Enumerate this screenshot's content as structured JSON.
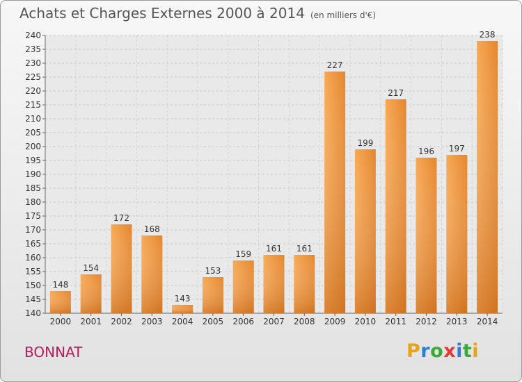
{
  "chart_title": "Achats et Charges Externes 2000 à 2014",
  "chart_subtitle": "(en milliers d'€)",
  "location": "BONNAT",
  "logo": {
    "letters": [
      "P",
      "r",
      "o",
      "x",
      "i",
      "t",
      "i"
    ],
    "colors": [
      "#e8a317",
      "#2b7fd4",
      "#3aa935",
      "#e53935",
      "#2b7fd4",
      "#3aa935",
      "#e8a317"
    ]
  },
  "colors": {
    "bar_light": "#f5a24e",
    "bar_dark": "#d4741c",
    "title": "#555555",
    "location": "#c2185b"
  },
  "chart_data": {
    "type": "bar",
    "title": "Achats et Charges Externes 2000 à 2014",
    "subtitle": "(en milliers d'€)",
    "categories": [
      "2000",
      "2001",
      "2002",
      "2003",
      "2004",
      "2005",
      "2006",
      "2007",
      "2008",
      "2009",
      "2010",
      "2011",
      "2012",
      "2013",
      "2014"
    ],
    "values": [
      148,
      154,
      172,
      168,
      143,
      153,
      159,
      161,
      161,
      227,
      199,
      217,
      196,
      197,
      238
    ],
    "ylim": [
      140,
      240
    ],
    "yticks": [
      140,
      145,
      150,
      155,
      160,
      165,
      170,
      175,
      180,
      185,
      190,
      195,
      200,
      205,
      210,
      215,
      220,
      225,
      230,
      235,
      240
    ],
    "grid": true,
    "xlabel": "",
    "ylabel": ""
  }
}
